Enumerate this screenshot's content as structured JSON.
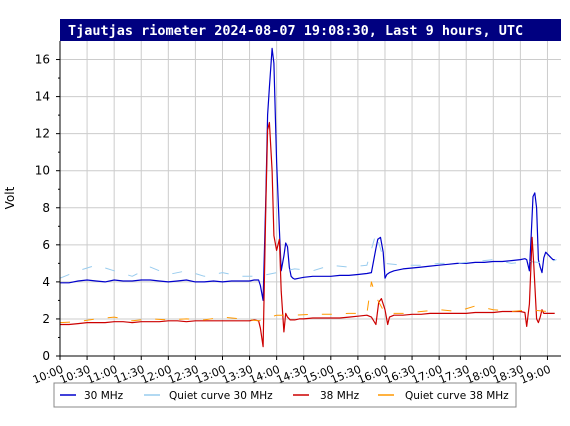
{
  "chart_data": {
    "type": "line",
    "title": "Tjautjas riometer 2024-08-07 19:08:30, Last 9 hours, UTC",
    "ylabel": "Volt",
    "xlabel": "",
    "ylim": [
      0,
      17
    ],
    "yticks": [
      0,
      2,
      4,
      6,
      8,
      10,
      12,
      14,
      16
    ],
    "xlim": [
      "10:00",
      "19:15"
    ],
    "xticks": [
      "10:00",
      "10:30",
      "11:00",
      "11:30",
      "12:00",
      "12:30",
      "13:00",
      "13:30",
      "14:00",
      "14:30",
      "15:00",
      "15:30",
      "16:00",
      "16:30",
      "17:00",
      "17:30",
      "18:00",
      "18:30",
      "19:00"
    ],
    "grid": true,
    "legend_position": "bottom",
    "series": [
      {
        "name": "30 MHz",
        "color": "#0000cc",
        "style": "solid",
        "x": [
          "10:00",
          "10:10",
          "10:20",
          "10:30",
          "10:40",
          "10:50",
          "11:00",
          "11:10",
          "11:20",
          "11:30",
          "11:40",
          "11:50",
          "12:00",
          "12:10",
          "12:20",
          "12:30",
          "12:40",
          "12:50",
          "13:00",
          "13:10",
          "13:20",
          "13:30",
          "13:35",
          "13:40",
          "13:42",
          "13:45",
          "13:48",
          "13:50",
          "13:52",
          "13:55",
          "13:57",
          "14:00",
          "14:03",
          "14:05",
          "14:08",
          "14:10",
          "14:12",
          "14:14",
          "14:16",
          "14:18",
          "14:20",
          "14:25",
          "14:30",
          "14:40",
          "14:50",
          "15:00",
          "15:10",
          "15:20",
          "15:30",
          "15:40",
          "15:45",
          "15:50",
          "15:52",
          "15:55",
          "15:58",
          "16:00",
          "16:02",
          "16:05",
          "16:10",
          "16:20",
          "16:30",
          "16:40",
          "16:50",
          "17:00",
          "17:10",
          "17:20",
          "17:30",
          "17:40",
          "17:50",
          "18:00",
          "18:10",
          "18:20",
          "18:30",
          "18:35",
          "18:37",
          "18:40",
          "18:42",
          "18:44",
          "18:46",
          "18:48",
          "18:50",
          "18:52",
          "18:54",
          "18:56",
          "18:58",
          "19:00",
          "19:02",
          "19:04",
          "19:06",
          "19:08"
        ],
        "y": [
          3.95,
          3.95,
          4.05,
          4.1,
          4.05,
          4.0,
          4.1,
          4.05,
          4.05,
          4.1,
          4.1,
          4.05,
          4.0,
          4.05,
          4.1,
          4.0,
          4.0,
          4.05,
          4.0,
          4.05,
          4.05,
          4.05,
          4.1,
          4.1,
          3.8,
          3.0,
          8.5,
          13.0,
          14.5,
          16.6,
          15.8,
          10.5,
          6.8,
          4.6,
          5.4,
          6.1,
          5.9,
          4.8,
          4.3,
          4.2,
          4.15,
          4.2,
          4.25,
          4.3,
          4.3,
          4.3,
          4.35,
          4.35,
          4.4,
          4.45,
          4.5,
          5.8,
          6.3,
          6.4,
          5.6,
          4.2,
          4.4,
          4.5,
          4.6,
          4.7,
          4.75,
          4.8,
          4.85,
          4.9,
          4.95,
          5.0,
          5.0,
          5.05,
          5.05,
          5.1,
          5.1,
          5.15,
          5.2,
          5.25,
          5.2,
          4.6,
          6.5,
          8.6,
          8.8,
          8.0,
          5.2,
          4.8,
          4.5,
          5.3,
          5.6,
          5.5,
          5.4,
          5.3,
          5.2,
          5.2
        ]
      },
      {
        "name": "Quiet curve 30 MHz",
        "color": "#99ccee",
        "style": "dashed",
        "x": [
          "10:00",
          "10:20",
          "10:40",
          "11:00",
          "11:20",
          "11:40",
          "12:00",
          "12:20",
          "12:40",
          "13:00",
          "13:20",
          "13:40",
          "14:00",
          "14:20",
          "14:40",
          "15:00",
          "15:20",
          "15:40",
          "15:50",
          "16:00",
          "16:20",
          "16:40",
          "17:00",
          "17:20",
          "17:40",
          "18:00",
          "18:20",
          "18:40",
          "19:00",
          "19:10"
        ],
        "y": [
          4.2,
          4.6,
          4.9,
          4.6,
          4.3,
          4.8,
          4.4,
          4.6,
          4.3,
          4.5,
          4.3,
          4.3,
          4.5,
          4.7,
          4.6,
          4.9,
          4.8,
          4.9,
          6.6,
          5.0,
          4.9,
          4.9,
          5.0,
          5.0,
          5.1,
          5.2,
          5.0,
          5.1,
          5.0,
          5.2
        ]
      },
      {
        "name": "38 MHz",
        "color": "#cc0000",
        "style": "solid",
        "x": [
          "10:00",
          "10:10",
          "10:20",
          "10:30",
          "10:40",
          "10:50",
          "11:00",
          "11:10",
          "11:20",
          "11:30",
          "11:40",
          "11:50",
          "12:00",
          "12:10",
          "12:20",
          "12:30",
          "12:40",
          "12:50",
          "13:00",
          "13:10",
          "13:20",
          "13:30",
          "13:35",
          "13:40",
          "13:42",
          "13:45",
          "13:48",
          "13:50",
          "13:52",
          "13:55",
          "13:57",
          "14:00",
          "14:03",
          "14:05",
          "14:08",
          "14:10",
          "14:12",
          "14:15",
          "14:20",
          "14:25",
          "14:30",
          "14:40",
          "14:50",
          "15:00",
          "15:10",
          "15:20",
          "15:30",
          "15:40",
          "15:45",
          "15:50",
          "15:53",
          "15:56",
          "16:00",
          "16:03",
          "16:05",
          "16:10",
          "16:20",
          "16:30",
          "16:40",
          "16:50",
          "17:00",
          "17:10",
          "17:20",
          "17:30",
          "17:40",
          "17:50",
          "18:00",
          "18:10",
          "18:20",
          "18:30",
          "18:35",
          "18:37",
          "18:40",
          "18:43",
          "18:45",
          "18:48",
          "18:50",
          "18:52",
          "18:54",
          "18:56",
          "18:58",
          "19:00",
          "19:02",
          "19:05",
          "19:08"
        ],
        "y": [
          1.7,
          1.7,
          1.75,
          1.8,
          1.8,
          1.8,
          1.85,
          1.85,
          1.8,
          1.85,
          1.85,
          1.85,
          1.9,
          1.9,
          1.85,
          1.9,
          1.9,
          1.9,
          1.9,
          1.9,
          1.9,
          1.9,
          1.95,
          1.9,
          1.5,
          0.5,
          8.0,
          12.2,
          12.6,
          10.0,
          6.5,
          5.7,
          6.3,
          3.5,
          1.3,
          2.3,
          2.1,
          1.95,
          1.95,
          2.0,
          2.0,
          2.05,
          2.05,
          2.05,
          2.05,
          2.1,
          2.15,
          2.2,
          2.1,
          1.7,
          2.9,
          3.1,
          2.5,
          1.7,
          2.1,
          2.2,
          2.2,
          2.25,
          2.25,
          2.3,
          2.3,
          2.3,
          2.3,
          2.3,
          2.35,
          2.35,
          2.35,
          2.4,
          2.4,
          2.4,
          2.35,
          1.6,
          2.8,
          6.4,
          4.8,
          2.0,
          1.8,
          2.1,
          2.5,
          2.3,
          2.3,
          2.3,
          2.3,
          2.3,
          2.3
        ]
      },
      {
        "name": "Quiet curve 38 MHz",
        "color": "#ff9900",
        "style": "dashed",
        "x": [
          "10:00",
          "10:20",
          "10:40",
          "11:00",
          "11:20",
          "11:40",
          "12:00",
          "12:20",
          "12:40",
          "13:00",
          "13:20",
          "13:40",
          "14:00",
          "14:20",
          "14:40",
          "15:00",
          "15:20",
          "15:40",
          "15:45",
          "15:50",
          "16:00",
          "16:20",
          "16:40",
          "17:00",
          "17:20",
          "17:40",
          "18:00",
          "18:20",
          "18:40",
          "19:00",
          "19:10"
        ],
        "y": [
          1.8,
          1.85,
          2.0,
          2.1,
          1.9,
          2.0,
          1.95,
          2.0,
          1.95,
          2.1,
          2.0,
          1.9,
          2.2,
          2.2,
          2.25,
          2.25,
          2.3,
          2.3,
          4.0,
          3.2,
          2.3,
          2.3,
          2.4,
          2.5,
          2.4,
          2.7,
          2.5,
          2.4,
          2.5,
          2.4,
          2.3
        ]
      }
    ]
  }
}
